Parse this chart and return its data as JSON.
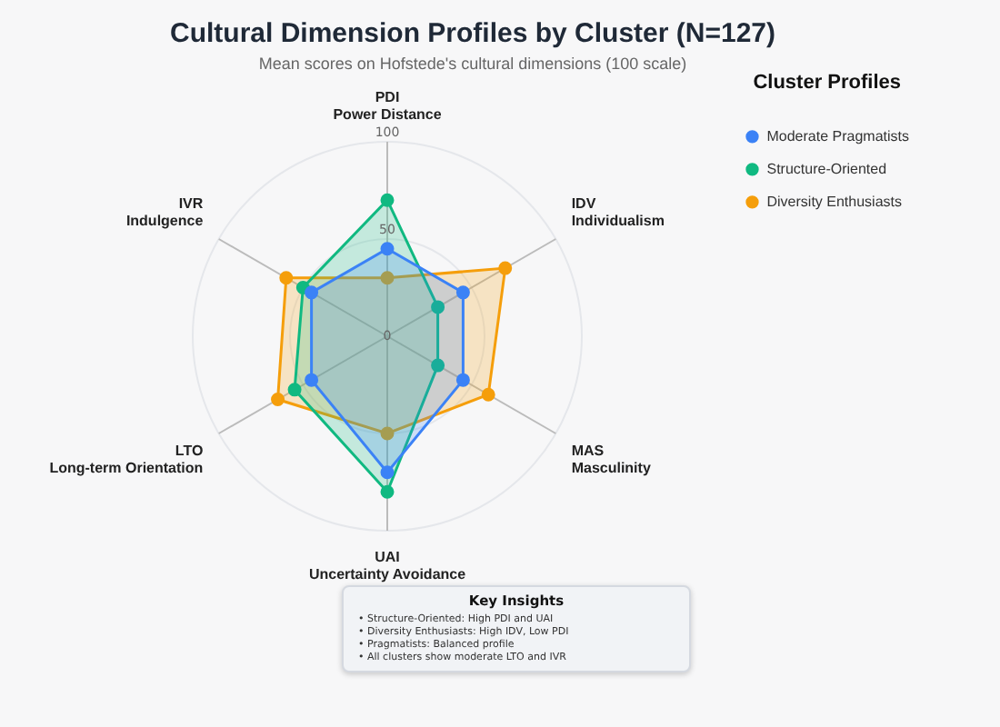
{
  "chart_data": {
    "type": "radar",
    "title": "Cultural Dimension Profiles by Cluster (N=127)",
    "subtitle": "Mean scores on Hofstede's cultural dimensions (100 scale)",
    "categories": [
      "PDI\nPower Distance",
      "IDV\nIndividualism",
      "MAS\nMasculinity",
      "UAI\nUncertainty Avoidance",
      "LTO\nLong-term Orientation",
      "IVR\nIndulgence"
    ],
    "series": [
      {
        "name": "Moderate Pragmatists",
        "color": "#3b82f6",
        "values": [
          45,
          45,
          45,
          70,
          45,
          45
        ]
      },
      {
        "name": "Structure-Oriented",
        "color": "#10b981",
        "values": [
          70,
          30,
          30,
          80,
          55,
          50
        ]
      },
      {
        "name": "Diversity Enthusiasts",
        "color": "#f59e0b",
        "values": [
          30,
          70,
          60,
          50,
          65,
          60
        ]
      }
    ],
    "ylim": [
      0,
      100
    ],
    "yticks": [
      0,
      50,
      100
    ],
    "grid": true,
    "legend": "right",
    "legend_title": "Cluster Profiles",
    "marker": "circle",
    "annotations": [
      "Key Insights",
      "• Structure-Oriented: High PDI and UAI",
      "• Diversity Enthusiasts: High IDV, Low PDI",
      "• Pragmatists: Balanced profile",
      "• All clusters show moderate LTO and IVR"
    ]
  }
}
